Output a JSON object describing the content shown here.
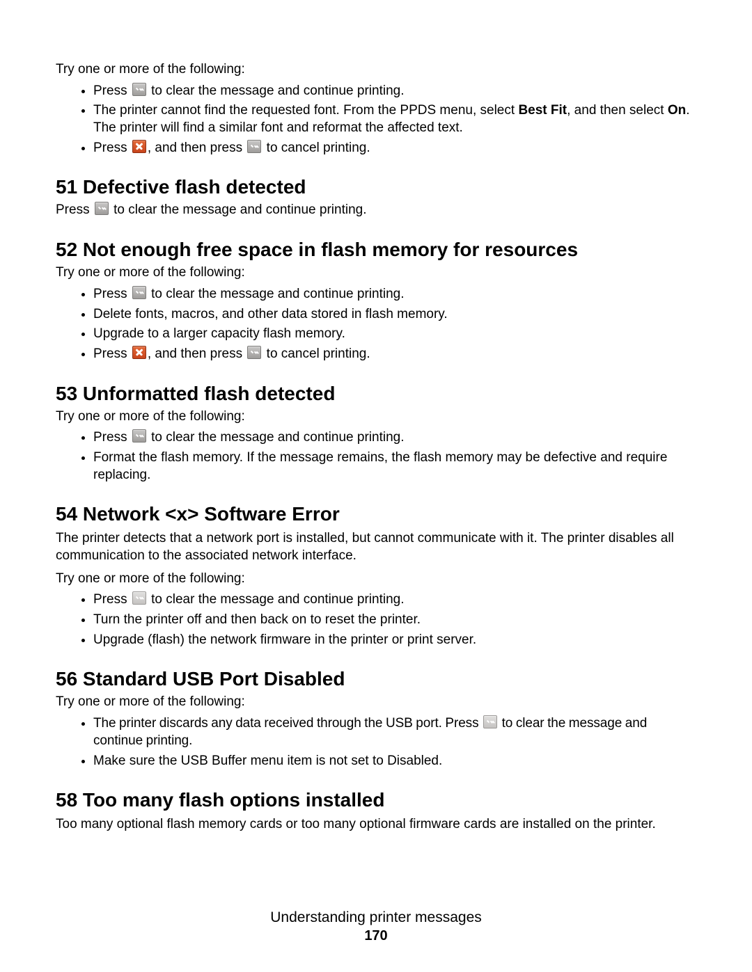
{
  "topIntro": "Try one or more of the following:",
  "topBullets": {
    "b0": {
      "pre": "Press ",
      "post": " to clear the message and continue printing."
    },
    "b1": {
      "pre": "The printer cannot find the requested font. From the PPDS menu, select ",
      "bold1": "Best Fit",
      "mid": ", and then select ",
      "bold2": "On",
      "post": ". The printer will find a similar font and reformat the affected text."
    },
    "b2": {
      "pre": "Press ",
      "mid": ", and then press ",
      "post": " to cancel printing."
    }
  },
  "s51": {
    "title": "51 Defective flash detected",
    "line": {
      "pre": "Press ",
      "post": " to clear the message and continue printing."
    }
  },
  "s52": {
    "title": "52 Not enough free space in flash memory for resources",
    "intro": "Try one or more of the following:",
    "b0": {
      "pre": "Press ",
      "post": " to clear the message and continue printing."
    },
    "b1": "Delete fonts, macros, and other data stored in flash memory.",
    "b2": "Upgrade to a larger capacity flash memory.",
    "b3": {
      "pre": "Press ",
      "mid": ", and then press ",
      "post": " to cancel printing."
    }
  },
  "s53": {
    "title": "53 Unformatted flash detected",
    "intro": "Try one or more of the following:",
    "b0": {
      "pre": "Press ",
      "post": " to clear the message and continue printing."
    },
    "b1": "Format the flash memory. If the message remains, the flash memory may be defective and require replacing."
  },
  "s54": {
    "title": "54 Network <x> Software Error",
    "para": "The printer detects that a network port is installed, but cannot communicate with it. The printer disables all communication to the associated network interface.",
    "intro": "Try one or more of the following:",
    "b0": {
      "pre": "Press ",
      "post": " to clear the message and continue printing."
    },
    "b1": "Turn the printer off and then back on to reset the printer.",
    "b2": "Upgrade (flash) the network firmware in the printer or print server."
  },
  "s56": {
    "title": "56 Standard USB Port Disabled",
    "intro": "Try one or more of the following:",
    "b0": {
      "pre": "The printer discards any data received through the USB port. Press ",
      "post": " to clear the message and continue printing."
    },
    "b1": "Make sure the USB Buffer menu item is not set to Disabled."
  },
  "s58": {
    "title": "58 Too many flash options installed",
    "para": "Too many optional flash memory cards or too many optional firmware cards are installed on the printer."
  },
  "footer": {
    "title": "Understanding printer messages",
    "page": "170"
  }
}
